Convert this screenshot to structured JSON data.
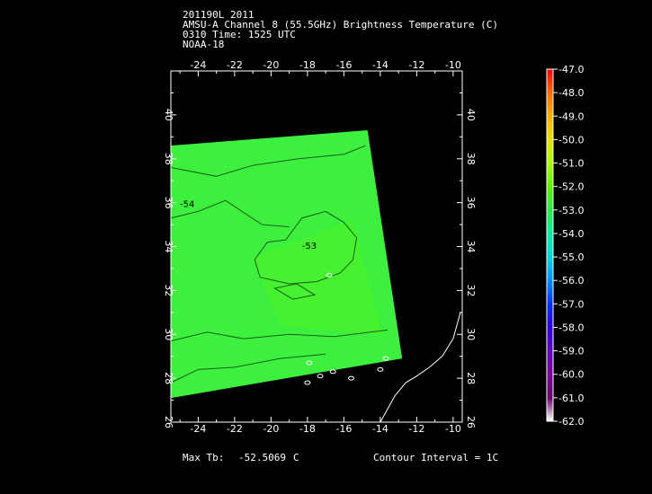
{
  "header": {
    "line1": "201190L 2011",
    "line2": "AMSU-A Channel 8 (55.5GHz) Brightness Temperature (C)",
    "line3": "0310 Time: 1525 UTC",
    "line4": "NOAA-18"
  },
  "footer": {
    "max_label": "Max Tb:",
    "max_value": "-52.5069",
    "max_unit": "C",
    "contour": "Contour Interval = 1C"
  },
  "chart_data": {
    "type": "heatmap",
    "title": "AMSU-A Channel 8 (55.5GHz) Brightness Temperature (C)",
    "xlim": [
      -25.5,
      -9.5
    ],
    "ylim": [
      26,
      42
    ],
    "x_ticks": [
      -24,
      -22,
      -20,
      -18,
      -16,
      -14,
      -12,
      -10
    ],
    "x_tick_labels": [
      "-24",
      "-22",
      "-20",
      "-18",
      "-16",
      "-14",
      "-12",
      "-10"
    ],
    "y_ticks": [
      26,
      28,
      30,
      32,
      34,
      36,
      38,
      40
    ],
    "y_tick_labels": [
      "26",
      "28",
      "30",
      "32",
      "34",
      "36",
      "38",
      "40"
    ],
    "swath_corners": [
      [
        -25.5,
        38.6
      ],
      [
        -14.7,
        39.3
      ],
      [
        -12.8,
        28.9
      ],
      [
        -25.5,
        27.1
      ]
    ],
    "swath_fill": "#3ef03e",
    "contour_labels": [
      {
        "text": "-54",
        "lon": -24.6,
        "lat": 35.8
      },
      {
        "text": "-53",
        "lon": -17.9,
        "lat": 33.9
      }
    ],
    "contour_interval": "1C",
    "max_tb": -52.5069,
    "colorbar": {
      "min": -62.0,
      "max": -47.0,
      "labels": [
        "-47.0",
        "-48.0",
        "-49.0",
        "-50.0",
        "-51.0",
        "-52.0",
        "-53.0",
        "-54.0",
        "-55.0",
        "-56.0",
        "-57.0",
        "-58.0",
        "-59.0",
        "-60.0",
        "-61.0",
        "-62.0"
      ],
      "colors": [
        "#ff0000",
        "#ff6a00",
        "#ffb000",
        "#e8e000",
        "#a8ff00",
        "#5cf000",
        "#2ee84a",
        "#00f0a0",
        "#00d8e0",
        "#0090ff",
        "#0030ff",
        "#3000e0",
        "#6000c0",
        "#80009a",
        "#6a0070",
        "#ffffff"
      ]
    }
  }
}
